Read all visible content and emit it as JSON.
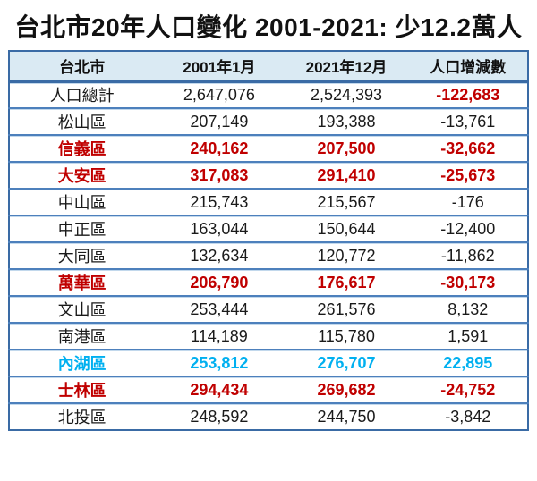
{
  "title": "台北市20年人口變化 2001-2021: 少12.2萬人",
  "table": {
    "headers": [
      "台北市",
      "2001年1月",
      "2021年12月",
      "人口增減數"
    ],
    "rows": [
      {
        "name": "人口總計",
        "v2001": "2,647,076",
        "v2021": "2,524,393",
        "change": "-122,683",
        "row_color": "black",
        "change_color": "red"
      },
      {
        "name": "松山區",
        "v2001": "207,149",
        "v2021": "193,388",
        "change": "-13,761",
        "row_color": "black",
        "change_color": "black"
      },
      {
        "name": "信義區",
        "v2001": "240,162",
        "v2021": "207,500",
        "change": "-32,662",
        "row_color": "red",
        "change_color": "red"
      },
      {
        "name": "大安區",
        "v2001": "317,083",
        "v2021": "291,410",
        "change": "-25,673",
        "row_color": "red",
        "change_color": "red"
      },
      {
        "name": "中山區",
        "v2001": "215,743",
        "v2021": "215,567",
        "change": "-176",
        "row_color": "black",
        "change_color": "black"
      },
      {
        "name": "中正區",
        "v2001": "163,044",
        "v2021": "150,644",
        "change": "-12,400",
        "row_color": "black",
        "change_color": "black"
      },
      {
        "name": "大同區",
        "v2001": "132,634",
        "v2021": "120,772",
        "change": "-11,862",
        "row_color": "black",
        "change_color": "black"
      },
      {
        "name": "萬華區",
        "v2001": "206,790",
        "v2021": "176,617",
        "change": "-30,173",
        "row_color": "red",
        "change_color": "red"
      },
      {
        "name": "文山區",
        "v2001": "253,444",
        "v2021": "261,576",
        "change": "8,132",
        "row_color": "black",
        "change_color": "black"
      },
      {
        "name": "南港區",
        "v2001": "114,189",
        "v2021": "115,780",
        "change": "1,591",
        "row_color": "black",
        "change_color": "black"
      },
      {
        "name": "內湖區",
        "v2001": "253,812",
        "v2021": "276,707",
        "change": "22,895",
        "row_color": "cyan",
        "change_color": "cyan"
      },
      {
        "name": "士林區",
        "v2001": "294,434",
        "v2021": "269,682",
        "change": "-24,752",
        "row_color": "red",
        "change_color": "red"
      },
      {
        "name": "北投區",
        "v2001": "248,592",
        "v2021": "244,750",
        "change": "-3,842",
        "row_color": "black",
        "change_color": "black"
      }
    ]
  },
  "colors": {
    "red": "#C00000",
    "cyan": "#00B0F0",
    "black": "#1a1a1a",
    "border_outer": "#3A6BA5",
    "border_inner": "#4D80BC",
    "header_bg": "#DAEAF3"
  },
  "chart_data": {
    "type": "table",
    "title": "台北市20年人口變化 2001-2021: 少12.2萬人",
    "columns": [
      "台北市",
      "2001年1月",
      "2021年12月",
      "人口增減數"
    ],
    "rows": [
      [
        "人口總計",
        2647076,
        2524393,
        -122683
      ],
      [
        "松山區",
        207149,
        193388,
        -13761
      ],
      [
        "信義區",
        240162,
        207500,
        -32662
      ],
      [
        "大安區",
        317083,
        291410,
        -25673
      ],
      [
        "中山區",
        215743,
        215567,
        -176
      ],
      [
        "中正區",
        163044,
        150644,
        -12400
      ],
      [
        "大同區",
        132634,
        120772,
        -11862
      ],
      [
        "萬華區",
        206790,
        176617,
        -30173
      ],
      [
        "文山區",
        253444,
        261576,
        8132
      ],
      [
        "南港區",
        114189,
        115780,
        1591
      ],
      [
        "內湖區",
        253812,
        276707,
        22895
      ],
      [
        "士林區",
        294434,
        269682,
        -24752
      ],
      [
        "北投區",
        248592,
        244750,
        -3842
      ]
    ],
    "highlight_colors": {
      "decrease_emphasis": "#C00000",
      "increase_emphasis": "#00B0F0"
    }
  }
}
